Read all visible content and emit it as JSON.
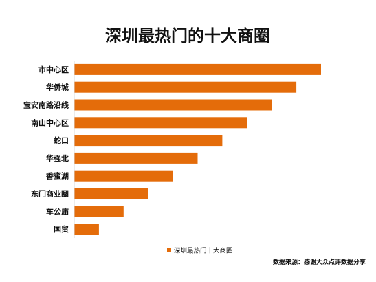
{
  "chart_data": {
    "type": "bar",
    "orientation": "horizontal",
    "title": "深圳最热门的十大商圈",
    "categories": [
      "市中心区",
      "华侨城",
      "宝安南路沿线",
      "南山中心区",
      "蛇口",
      "华强北",
      "香蜜湖",
      "东门商业圈",
      "车公庙",
      "国贸"
    ],
    "series": [
      {
        "name": "深圳最热门十大商圈",
        "values": [
          10,
          9,
          8,
          7,
          6,
          5,
          4,
          3,
          2,
          1
        ],
        "color": "#E46C0A"
      }
    ],
    "xlim": [
      0,
      10
    ],
    "grid": false,
    "legend_position": "bottom",
    "source": "数据来源：感谢大众点评数据分享"
  }
}
